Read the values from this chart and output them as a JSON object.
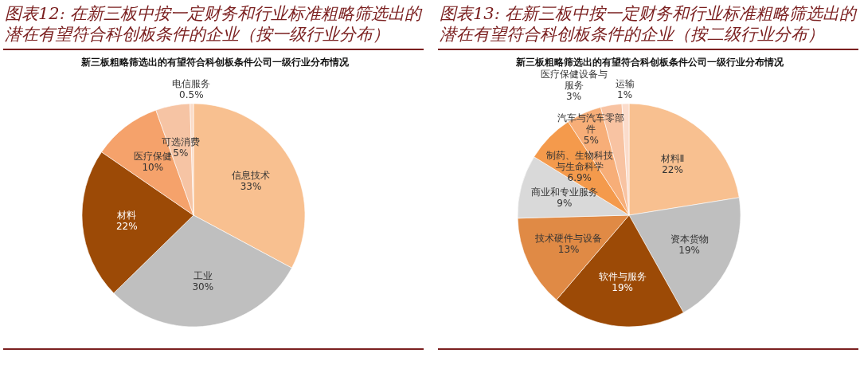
{
  "chart_data": [
    {
      "type": "pie",
      "title": "图表12: 在新三板中按一定财务和行业标准粗略筛选出的潜在有望符合科创板条件的企业（按一级行业分布）",
      "subtitle": "新三板粗略筛选出的有望符合科创板条件公司一级行业分布情况",
      "categories": [
        "信息技术",
        "工业",
        "材料",
        "医疗保健",
        "可选消费",
        "电信服务"
      ],
      "values": [
        33,
        30,
        22,
        10,
        5,
        0.5
      ],
      "colors": [
        "#f8c090",
        "#bfbfbf",
        "#9c4a06",
        "#f5a26b",
        "#f6c4a4",
        "#fbdcc8"
      ],
      "value_labels": [
        "33%",
        "30%",
        "22%",
        "10%",
        "5%",
        "0.5%"
      ]
    },
    {
      "type": "pie",
      "title": "图表13: 在新三板中按一定财务和行业标准粗略筛选出的潜在有望符合科创板条件的企业（按二级行业分布）",
      "subtitle": "新三板粗略筛选出的有望符合科创板条件公司一级行业分布情况",
      "categories": [
        "材料Ⅱ",
        "资本货物",
        "软件与服务",
        "技术硬件与设备",
        "商业和专业服务",
        "制药、生物科技与生命科学",
        "汽车与汽车零部件",
        "医疗保健设备与服务",
        "运输"
      ],
      "values": [
        22,
        19,
        19,
        13,
        9,
        6.9,
        5,
        3,
        1
      ],
      "colors": [
        "#f8c090",
        "#bfbfbf",
        "#9c4a06",
        "#e08a45",
        "#d9d9d9",
        "#f49a4c",
        "#f7ae78",
        "#f8c3a2",
        "#fbdccb"
      ],
      "value_labels": [
        "22%",
        "19%",
        "19%",
        "13%",
        "9%",
        "6.9%",
        "5%",
        "3%",
        "1%"
      ]
    }
  ]
}
